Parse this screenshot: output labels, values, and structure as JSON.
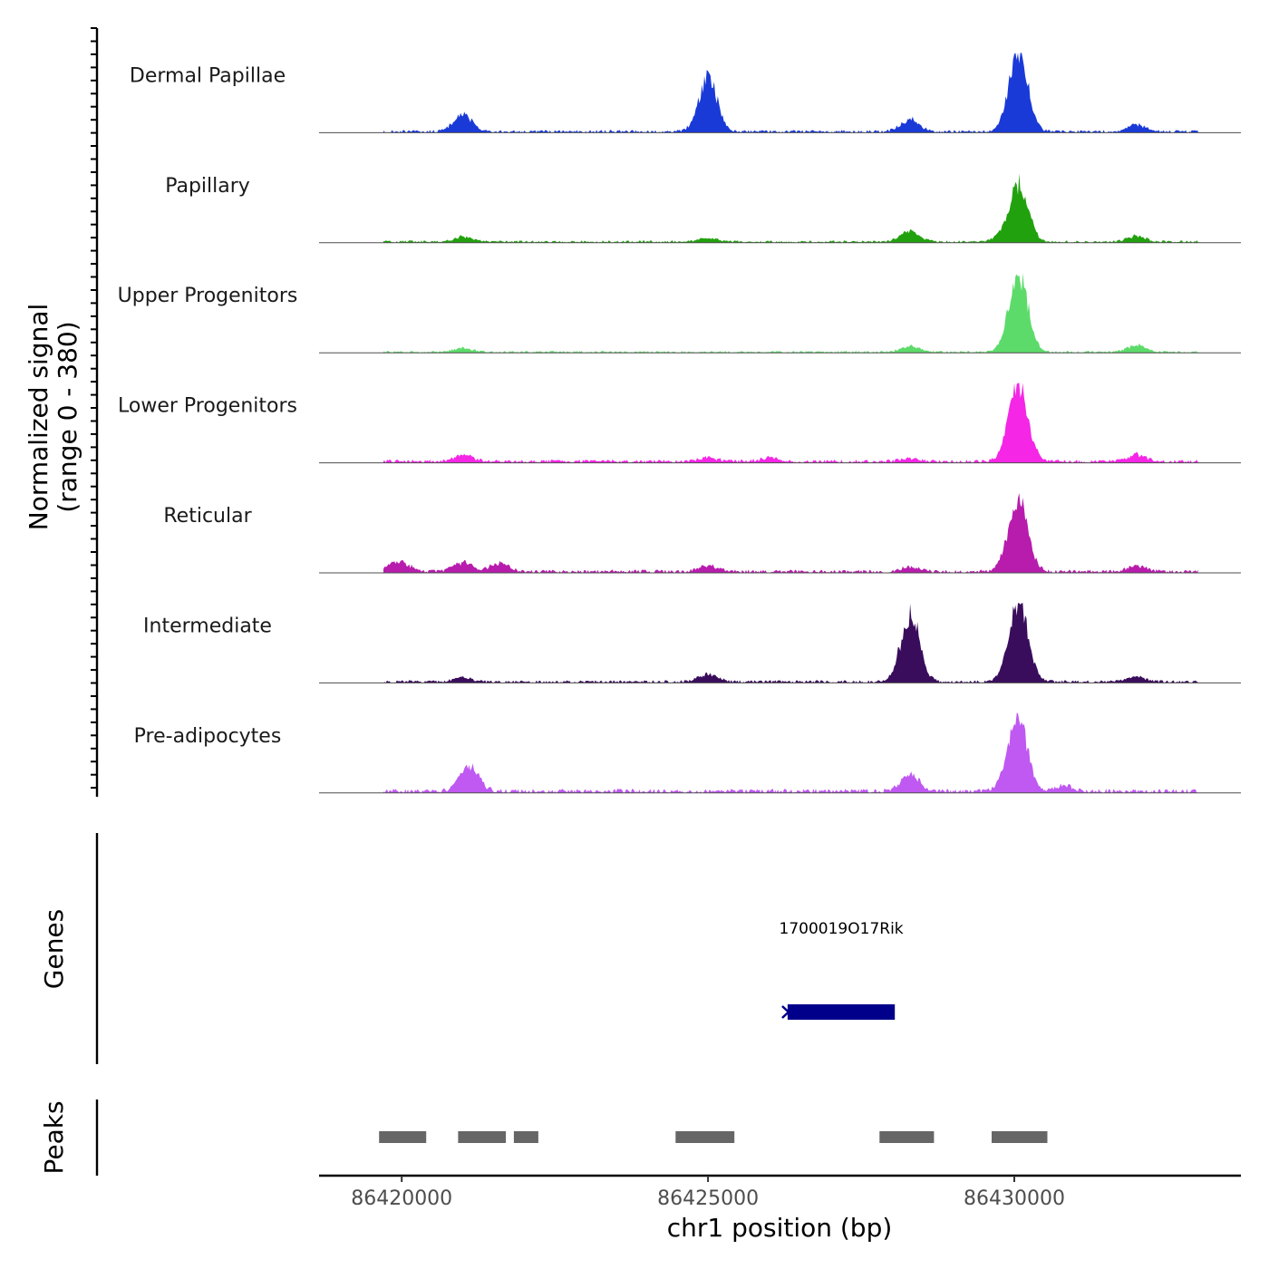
{
  "chart_data": {
    "type": "area",
    "title": "",
    "region": "chr1",
    "xlabel": "chr1 position (bp)",
    "ylabel": [
      "Normalized signal",
      "(range 0 - 380)"
    ],
    "ylim": [
      0,
      380
    ],
    "xlim": [
      86418650,
      86433700
    ],
    "xticks": [
      {
        "value": 86420000,
        "label": "86420000"
      },
      {
        "value": 86425000,
        "label": "86425000"
      },
      {
        "value": 86430000,
        "label": "86430000"
      }
    ],
    "signal_start": 86419700,
    "signal_end": 86433000,
    "peak_shape_width_bp": 150,
    "tracks": [
      {
        "name": "Dermal Papillae",
        "color": "#1a3ad8",
        "baseline": 12,
        "peaks": [
          [
            86421000,
            90
          ],
          [
            86425000,
            280
          ],
          [
            86428300,
            60
          ],
          [
            86429950,
            40
          ],
          [
            86430080,
            375
          ],
          [
            86432000,
            35
          ]
        ]
      },
      {
        "name": "Papillary",
        "color": "#22a10e",
        "baseline": 10,
        "peaks": [
          [
            86421000,
            25
          ],
          [
            86425000,
            20
          ],
          [
            86428300,
            55
          ],
          [
            86429800,
            25
          ],
          [
            86430080,
            290
          ],
          [
            86432000,
            30
          ]
        ]
      },
      {
        "name": "Upper Progenitors",
        "color": "#5ddb6a",
        "baseline": 8,
        "peaks": [
          [
            86421000,
            20
          ],
          [
            86428300,
            30
          ],
          [
            86429950,
            45
          ],
          [
            86430080,
            370
          ],
          [
            86432000,
            35
          ]
        ]
      },
      {
        "name": "Lower Progenitors",
        "color": "#f526e6",
        "baseline": 14,
        "peaks": [
          [
            86421000,
            35
          ],
          [
            86425000,
            20
          ],
          [
            86426000,
            20
          ],
          [
            86428300,
            15
          ],
          [
            86429950,
            45
          ],
          [
            86430080,
            375
          ],
          [
            86432000,
            35
          ]
        ]
      },
      {
        "name": "Reticular",
        "color": "#b81cad",
        "baseline": 14,
        "peaks": [
          [
            86419800,
            20
          ],
          [
            86420000,
            40
          ],
          [
            86421000,
            45
          ],
          [
            86421600,
            45
          ],
          [
            86425000,
            30
          ],
          [
            86428300,
            25
          ],
          [
            86429950,
            60
          ],
          [
            86430080,
            320
          ],
          [
            86432000,
            30
          ]
        ]
      },
      {
        "name": "Intermediate",
        "color": "#3a0d5c",
        "baseline": 12,
        "peaks": [
          [
            86421000,
            20
          ],
          [
            86425000,
            40
          ],
          [
            86428300,
            350
          ],
          [
            86429950,
            40
          ],
          [
            86430080,
            370
          ],
          [
            86432000,
            25
          ]
        ]
      },
      {
        "name": "Pre-adipocytes",
        "color": "#bf59f2",
        "baseline": 18,
        "peaks": [
          [
            86421100,
            130
          ],
          [
            86428300,
            90
          ],
          [
            86429950,
            90
          ],
          [
            86430080,
            320
          ],
          [
            86430800,
            30
          ]
        ]
      }
    ],
    "genes": [
      {
        "name": "1700019O17Rik",
        "start": 86426300,
        "end": 86428050,
        "strand": "-",
        "color": "#00008b"
      }
    ],
    "peaks": [
      {
        "start": 86419630,
        "end": 86420400
      },
      {
        "start": 86420920,
        "end": 86421700
      },
      {
        "start": 86421830,
        "end": 86422230
      },
      {
        "start": 86424470,
        "end": 86425430
      },
      {
        "start": 86427800,
        "end": 86428690
      },
      {
        "start": 86429630,
        "end": 86430540
      }
    ],
    "section_labels": {
      "genes": "Genes",
      "peaks": "Peaks"
    }
  }
}
